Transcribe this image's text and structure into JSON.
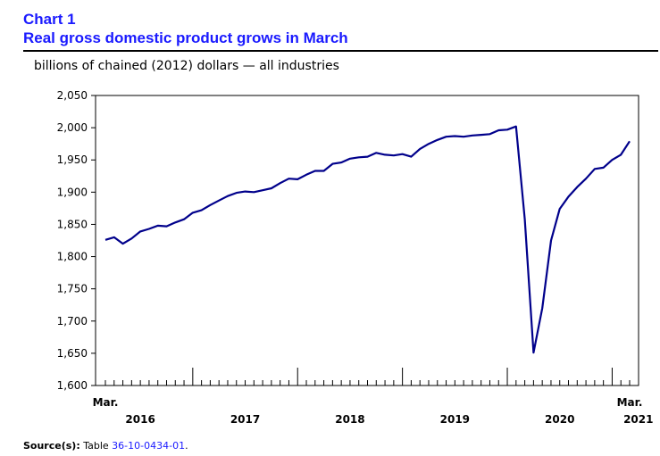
{
  "header": {
    "label": "Chart 1",
    "title": "Real gross domestic product grows in March",
    "subtitle": "billions of chained (2012) dollars — all industries"
  },
  "footer": {
    "source_label": "Source(s):",
    "source_prefix": "Table",
    "source_link": "36-10-0434-01",
    "source_suffix": "."
  },
  "colors": {
    "line": "#00008b",
    "title": "#1a1aff"
  },
  "chart_data": {
    "type": "line",
    "title": "Real gross domestic product grows in March",
    "ylabel": "billions of chained (2012) dollars — all industries",
    "ylim": [
      1600,
      2050
    ],
    "yticks": [
      1600,
      1650,
      1700,
      1750,
      1800,
      1850,
      1900,
      1950,
      2000,
      2050
    ],
    "ytick_labels": [
      "1,600",
      "1,650",
      "1,700",
      "1,750",
      "1,800",
      "1,850",
      "1,900",
      "1,950",
      "2,000",
      "2,050"
    ],
    "x_start_label": "Mar.",
    "x_end_label": "Mar.",
    "year_labels": [
      "2016",
      "2017",
      "2018",
      "2019",
      "2020",
      "2021"
    ],
    "year_label_months": [
      4,
      16,
      28,
      40,
      52,
      61
    ],
    "year_boundaries": [
      10,
      22,
      34,
      46,
      58
    ],
    "x": [
      "2016-03",
      "2016-04",
      "2016-05",
      "2016-06",
      "2016-07",
      "2016-08",
      "2016-09",
      "2016-10",
      "2016-11",
      "2016-12",
      "2017-01",
      "2017-02",
      "2017-03",
      "2017-04",
      "2017-05",
      "2017-06",
      "2017-07",
      "2017-08",
      "2017-09",
      "2017-10",
      "2017-11",
      "2017-12",
      "2018-01",
      "2018-02",
      "2018-03",
      "2018-04",
      "2018-05",
      "2018-06",
      "2018-07",
      "2018-08",
      "2018-09",
      "2018-10",
      "2018-11",
      "2018-12",
      "2019-01",
      "2019-02",
      "2019-03",
      "2019-04",
      "2019-05",
      "2019-06",
      "2019-07",
      "2019-08",
      "2019-09",
      "2019-10",
      "2019-11",
      "2019-12",
      "2020-01",
      "2020-02",
      "2020-03",
      "2020-04",
      "2020-05",
      "2020-06",
      "2020-07",
      "2020-08",
      "2020-09",
      "2020-10",
      "2020-11",
      "2020-12",
      "2021-01",
      "2021-02",
      "2021-03"
    ],
    "series": [
      {
        "values": [
          1826,
          1830,
          1820,
          1828,
          1839,
          1843,
          1848,
          1847,
          1853,
          1858,
          1868,
          1872,
          1880,
          1887,
          1894,
          1899,
          1901,
          1900,
          1903,
          1906,
          1914,
          1921,
          1920,
          1927,
          1933,
          1933,
          1944,
          1946,
          1952,
          1954,
          1955,
          1961,
          1958,
          1957,
          1959,
          1955,
          1967,
          1975,
          1981,
          1986,
          1987,
          1986,
          1988,
          1989,
          1990,
          1996,
          1997,
          2002,
          1858,
          1651,
          1720,
          1825,
          1874,
          1893,
          1908,
          1921,
          1936,
          1938,
          1950,
          1958,
          1979
        ]
      }
    ],
    "grid": false,
    "legend": "none"
  }
}
